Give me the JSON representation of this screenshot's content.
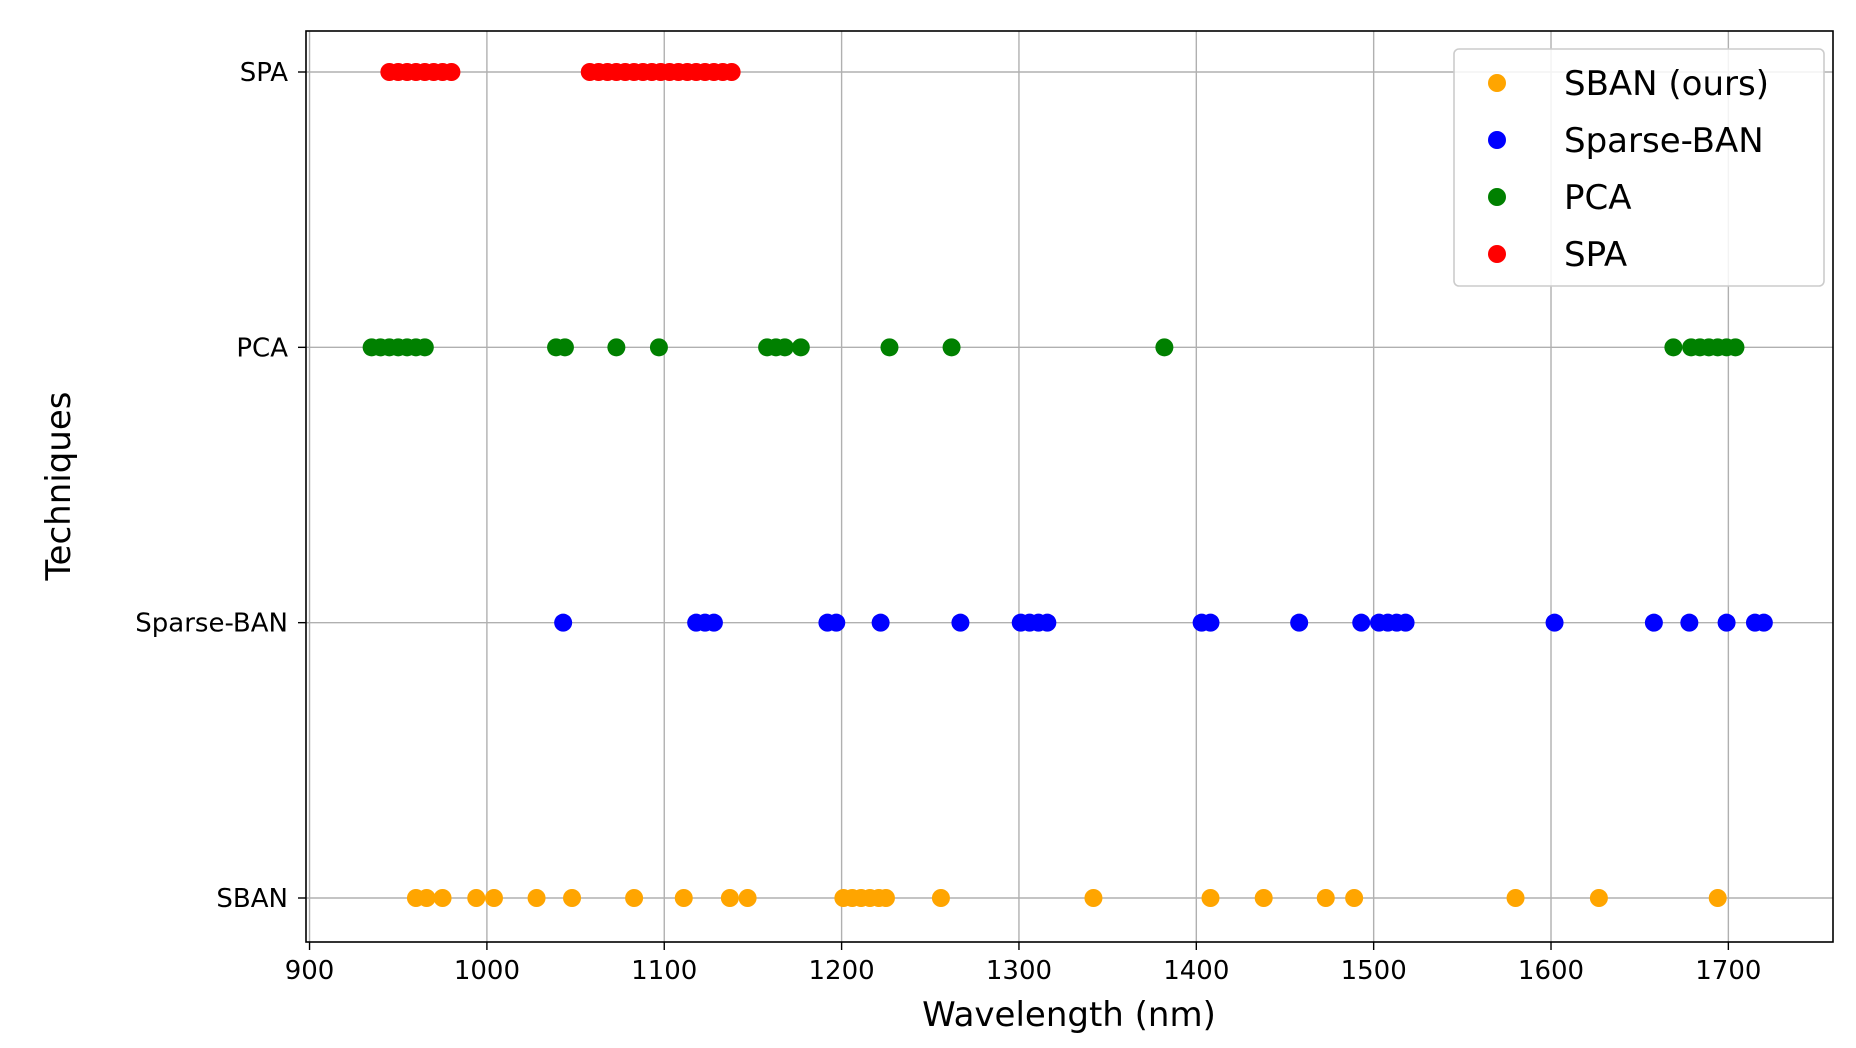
{
  "chart_data": {
    "type": "scatter",
    "title": "",
    "xlabel": "Wavelength (nm)",
    "ylabel": "Techniques",
    "xlim": [
      898,
      1759
    ],
    "xticks": [
      900,
      1000,
      1100,
      1200,
      1300,
      1400,
      1500,
      1600,
      1700
    ],
    "categories": [
      "SBAN",
      "Sparse-BAN",
      "PCA",
      "SPA"
    ],
    "grid": true,
    "legend_position": "top-right",
    "series": [
      {
        "name": "SBAN (ours)",
        "category": "SBAN",
        "color": "#ffa500",
        "x": [
          960,
          966,
          975,
          994,
          1004,
          1028,
          1048,
          1083,
          1111,
          1137,
          1147,
          1201,
          1206,
          1211,
          1216,
          1221,
          1225,
          1256,
          1342,
          1408,
          1438,
          1473,
          1489,
          1580,
          1627,
          1694
        ]
      },
      {
        "name": "Sparse-BAN",
        "category": "Sparse-BAN",
        "color": "#0000ff",
        "x": [
          1043,
          1118,
          1123,
          1128,
          1192,
          1197,
          1222,
          1267,
          1301,
          1306,
          1311,
          1316,
          1403,
          1408,
          1458,
          1493,
          1503,
          1508,
          1513,
          1518,
          1602,
          1658,
          1678,
          1699,
          1715,
          1720
        ]
      },
      {
        "name": "PCA",
        "category": "PCA",
        "color": "#008000",
        "x": [
          935,
          940,
          945,
          950,
          955,
          960,
          965,
          1039,
          1044,
          1073,
          1097,
          1158,
          1163,
          1168,
          1177,
          1227,
          1262,
          1382,
          1669,
          1679,
          1684,
          1689,
          1694,
          1699,
          1704
        ]
      },
      {
        "name": "SPA",
        "category": "SPA",
        "color": "#ff0000",
        "x": [
          945,
          950,
          955,
          960,
          965,
          970,
          975,
          980,
          1058,
          1063,
          1068,
          1073,
          1078,
          1083,
          1088,
          1093,
          1098,
          1103,
          1108,
          1113,
          1118,
          1123,
          1128,
          1133,
          1138
        ]
      }
    ]
  }
}
